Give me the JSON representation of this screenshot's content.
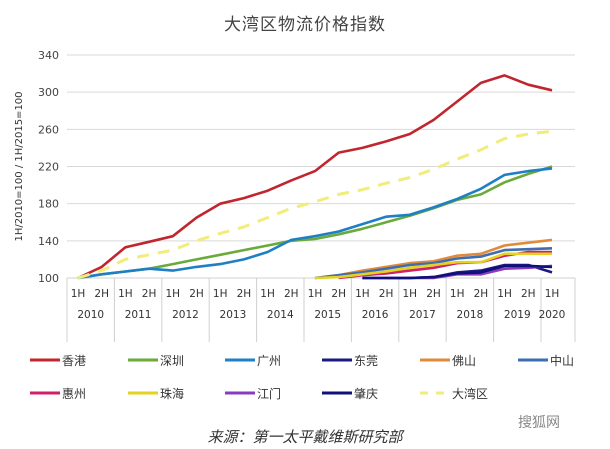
{
  "chart_data": {
    "type": "line",
    "title": "大湾区物流价格指数",
    "ylabel": "1H/2010=100 / 1H/2015=100",
    "ylim": [
      100,
      340
    ],
    "yticks": [
      100,
      140,
      180,
      220,
      260,
      300,
      340
    ],
    "grid": true,
    "legend_placement": "bottom",
    "x": [
      "1H 2010",
      "2H 2010",
      "1H 2011",
      "2H 2011",
      "1H 2012",
      "2H 2012",
      "1H 2013",
      "2H 2013",
      "1H 2014",
      "2H 2014",
      "1H 2015",
      "2H 2015",
      "1H 2016",
      "2H 2016",
      "1H 2017",
      "2H 2017",
      "1H 2018",
      "2H 2018",
      "1H 2019",
      "2H 2019",
      "1H 2020"
    ],
    "halves": [
      "1H",
      "2H",
      "1H",
      "2H",
      "1H",
      "2H",
      "1H",
      "2H",
      "1H",
      "2H",
      "1H",
      "2H",
      "1H",
      "2H",
      "1H",
      "2H",
      "1H",
      "2H",
      "1H",
      "2H",
      "1H"
    ],
    "years": [
      "2010",
      "2011",
      "2012",
      "2013",
      "2014",
      "2015",
      "2016",
      "2017",
      "2018",
      "2019",
      "2020"
    ],
    "series": [
      {
        "name": "香港",
        "color": "#c0262d",
        "dash": false,
        "values": [
          100,
          112,
          133,
          139,
          145,
          165,
          180,
          186,
          194,
          205,
          215,
          235,
          240,
          247,
          255,
          270,
          290,
          310,
          318,
          308,
          302
        ]
      },
      {
        "name": "深圳",
        "color": "#6aaa3a",
        "dash": false,
        "values": [
          100,
          104,
          107,
          110,
          115,
          120,
          125,
          130,
          135,
          140,
          142,
          147,
          153,
          160,
          167,
          175,
          184,
          190,
          203,
          212,
          220
        ]
      },
      {
        "name": "广州",
        "color": "#1f7fc4",
        "dash": false,
        "values": [
          100,
          104,
          107,
          110,
          108,
          112,
          115,
          120,
          128,
          141,
          145,
          150,
          158,
          166,
          168,
          176,
          185,
          196,
          211,
          215,
          218
        ]
      },
      {
        "name": "东莞",
        "color": "#1a1a80",
        "dash": false,
        "values": [
          null,
          null,
          null,
          null,
          null,
          null,
          null,
          null,
          null,
          null,
          null,
          null,
          100,
          100,
          100,
          101,
          106,
          108,
          114,
          114,
          106
        ]
      },
      {
        "name": "佛山",
        "color": "#e08a3c",
        "dash": false,
        "values": [
          null,
          null,
          null,
          null,
          null,
          null,
          null,
          null,
          null,
          null,
          100,
          103,
          108,
          112,
          116,
          118,
          124,
          126,
          135,
          138,
          141
        ]
      },
      {
        "name": "中山",
        "color": "#3d6fb0",
        "dash": false,
        "values": [
          null,
          null,
          null,
          null,
          null,
          null,
          null,
          null,
          null,
          null,
          100,
          103,
          106,
          110,
          114,
          116,
          121,
          123,
          130,
          131,
          132
        ]
      },
      {
        "name": "惠州",
        "color": "#d0206a",
        "dash": false,
        "values": [
          null,
          null,
          null,
          null,
          null,
          null,
          null,
          null,
          null,
          null,
          null,
          100,
          103,
          105,
          108,
          111,
          116,
          117,
          124,
          128,
          128
        ]
      },
      {
        "name": "珠海",
        "color": "#e3d222",
        "dash": false,
        "values": [
          null,
          null,
          null,
          null,
          null,
          null,
          null,
          null,
          null,
          null,
          100,
          101,
          104,
          107,
          111,
          114,
          117,
          117,
          126,
          126,
          126
        ]
      },
      {
        "name": "江门",
        "color": "#8a3cc0",
        "dash": false,
        "values": [
          null,
          null,
          null,
          null,
          null,
          null,
          null,
          null,
          null,
          null,
          null,
          null,
          null,
          100,
          100,
          100,
          104,
          104,
          110,
          111,
          113
        ]
      },
      {
        "name": "肇庆",
        "color": "#10107a",
        "dash": false,
        "values": [
          null,
          null,
          null,
          null,
          null,
          null,
          null,
          null,
          null,
          null,
          null,
          null,
          100,
          100,
          100,
          101,
          105,
          106,
          113,
          113,
          112
        ]
      },
      {
        "name": "大湾区",
        "color": "#f2ec7a",
        "dash": true,
        "values": [
          100,
          108,
          120,
          125,
          130,
          140,
          148,
          155,
          165,
          175,
          182,
          190,
          195,
          202,
          208,
          217,
          228,
          238,
          250,
          255,
          258
        ]
      }
    ]
  },
  "footer": {
    "source": "来源：第一太平戴维斯研究部",
    "watermark": "搜狐网"
  }
}
